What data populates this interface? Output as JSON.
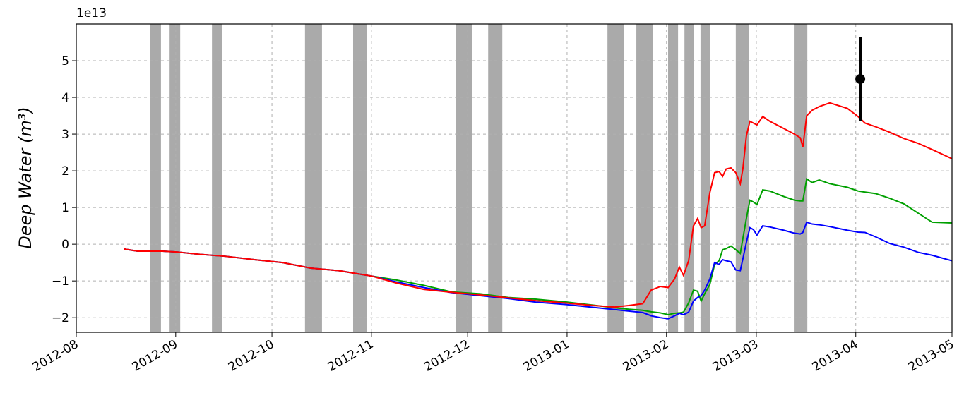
{
  "chart_data": {
    "type": "line",
    "ylabel": "Deep Water (m³)",
    "y_offset_label": "1e13",
    "xlim": [
      0,
      273
    ],
    "xticks": [
      {
        "value": 0,
        "label": "2012-08"
      },
      {
        "value": 31,
        "label": "2012-09"
      },
      {
        "value": 61,
        "label": "2012-10"
      },
      {
        "value": 92,
        "label": "2012-11"
      },
      {
        "value": 122,
        "label": "2012-12"
      },
      {
        "value": 153,
        "label": "2013-01"
      },
      {
        "value": 184,
        "label": "2013-02"
      },
      {
        "value": 212,
        "label": "2013-03"
      },
      {
        "value": 243,
        "label": "2013-04"
      },
      {
        "value": 273,
        "label": "2013-05"
      }
    ],
    "ylim": [
      -2.4,
      6.0
    ],
    "yticks": [
      {
        "value": -2,
        "label": "−2"
      },
      {
        "value": -1,
        "label": "−1"
      },
      0,
      1,
      2,
      3,
      4,
      5
    ],
    "grid": true,
    "shade_color": "#aaaaaa",
    "shaded_spans": [
      [
        23.1,
        26.4
      ],
      [
        29.1,
        32.4
      ],
      [
        42.3,
        45.4
      ],
      [
        71.3,
        76.6
      ],
      [
        86.3,
        90.5
      ],
      [
        118.4,
        123.5
      ],
      [
        128.4,
        132.8
      ],
      [
        165.6,
        170.8
      ],
      [
        174.6,
        179.7
      ],
      [
        184.5,
        187.6
      ],
      [
        189.6,
        192.6
      ],
      [
        194.6,
        197.7
      ],
      [
        205.6,
        209.8
      ],
      [
        223.7,
        227.9
      ]
    ],
    "errorbar": {
      "x": 244.4,
      "y": 4.5,
      "yerr": 1.15,
      "color": "#000000"
    },
    "x": [
      14.8,
      19.2,
      26.9,
      31.3,
      37.9,
      46.7,
      55.5,
      64.3,
      73.1,
      81.9,
      92.2,
      99.5,
      108.3,
      117.1,
      125.9,
      134.7,
      143.5,
      152.4,
      161.2,
      167.8,
      172.2,
      176.6,
      179.2,
      182.1,
      184.5,
      186.5,
      188.0,
      189.3,
      190.9,
      192.4,
      193.7,
      194.8,
      195.9,
      197.5,
      199.0,
      200.4,
      201.5,
      202.6,
      204.1,
      205.6,
      207.0,
      207.8,
      208.9,
      210.0,
      211.1,
      212.2,
      214.0,
      216.2,
      220.6,
      223.9,
      225.7,
      226.5,
      227.7,
      229.4,
      231.6,
      234.9,
      240.4,
      243.7,
      245.9,
      249.2,
      253.6,
      258.0,
      262.4,
      266.8,
      273.0
    ],
    "series": [
      {
        "color": "#00a000",
        "values": [
          -0.13,
          -0.19,
          -0.19,
          -0.21,
          -0.27,
          -0.33,
          -0.42,
          -0.5,
          -0.65,
          -0.72,
          -0.87,
          -0.97,
          -1.12,
          -1.3,
          -1.35,
          -1.45,
          -1.5,
          -1.57,
          -1.66,
          -1.73,
          -1.77,
          -1.8,
          -1.84,
          -1.87,
          -1.92,
          -1.88,
          -1.87,
          -1.85,
          -1.6,
          -1.25,
          -1.28,
          -1.55,
          -1.35,
          -1.1,
          -0.55,
          -0.45,
          -0.15,
          -0.12,
          -0.05,
          -0.15,
          -0.25,
          0.15,
          0.7,
          1.2,
          1.15,
          1.08,
          1.48,
          1.45,
          1.3,
          1.2,
          1.18,
          1.18,
          1.78,
          1.68,
          1.75,
          1.65,
          1.55,
          1.45,
          1.42,
          1.38,
          1.25,
          1.1,
          0.85,
          0.6,
          0.58
        ]
      },
      {
        "color": "#0000ff",
        "values": [
          -0.13,
          -0.19,
          -0.19,
          -0.21,
          -0.27,
          -0.33,
          -0.42,
          -0.5,
          -0.65,
          -0.72,
          -0.87,
          -1.02,
          -1.18,
          -1.32,
          -1.4,
          -1.48,
          -1.58,
          -1.64,
          -1.72,
          -1.78,
          -1.82,
          -1.86,
          -1.95,
          -2.0,
          -2.03,
          -1.95,
          -1.88,
          -1.92,
          -1.85,
          -1.55,
          -1.45,
          -1.4,
          -1.25,
          -0.95,
          -0.5,
          -0.55,
          -0.42,
          -0.45,
          -0.48,
          -0.7,
          -0.72,
          -0.4,
          0.05,
          0.45,
          0.4,
          0.25,
          0.5,
          0.47,
          0.38,
          0.3,
          0.28,
          0.32,
          0.6,
          0.55,
          0.53,
          0.48,
          0.38,
          0.33,
          0.32,
          0.2,
          0.02,
          -0.08,
          -0.22,
          -0.3,
          -0.45
        ]
      },
      {
        "color": "#ff0000",
        "values": [
          -0.13,
          -0.19,
          -0.19,
          -0.21,
          -0.27,
          -0.33,
          -0.42,
          -0.5,
          -0.65,
          -0.72,
          -0.87,
          -1.05,
          -1.23,
          -1.31,
          -1.38,
          -1.46,
          -1.54,
          -1.6,
          -1.67,
          -1.71,
          -1.67,
          -1.62,
          -1.25,
          -1.15,
          -1.18,
          -0.95,
          -0.62,
          -0.85,
          -0.45,
          0.5,
          0.7,
          0.45,
          0.5,
          1.4,
          1.95,
          1.98,
          1.85,
          2.05,
          2.08,
          1.95,
          1.65,
          2.05,
          2.95,
          3.35,
          3.3,
          3.25,
          3.48,
          3.35,
          3.15,
          3.0,
          2.9,
          2.65,
          3.5,
          3.65,
          3.75,
          3.85,
          3.7,
          3.48,
          3.3,
          3.2,
          3.05,
          2.88,
          2.75,
          2.58,
          2.33
        ]
      }
    ]
  }
}
